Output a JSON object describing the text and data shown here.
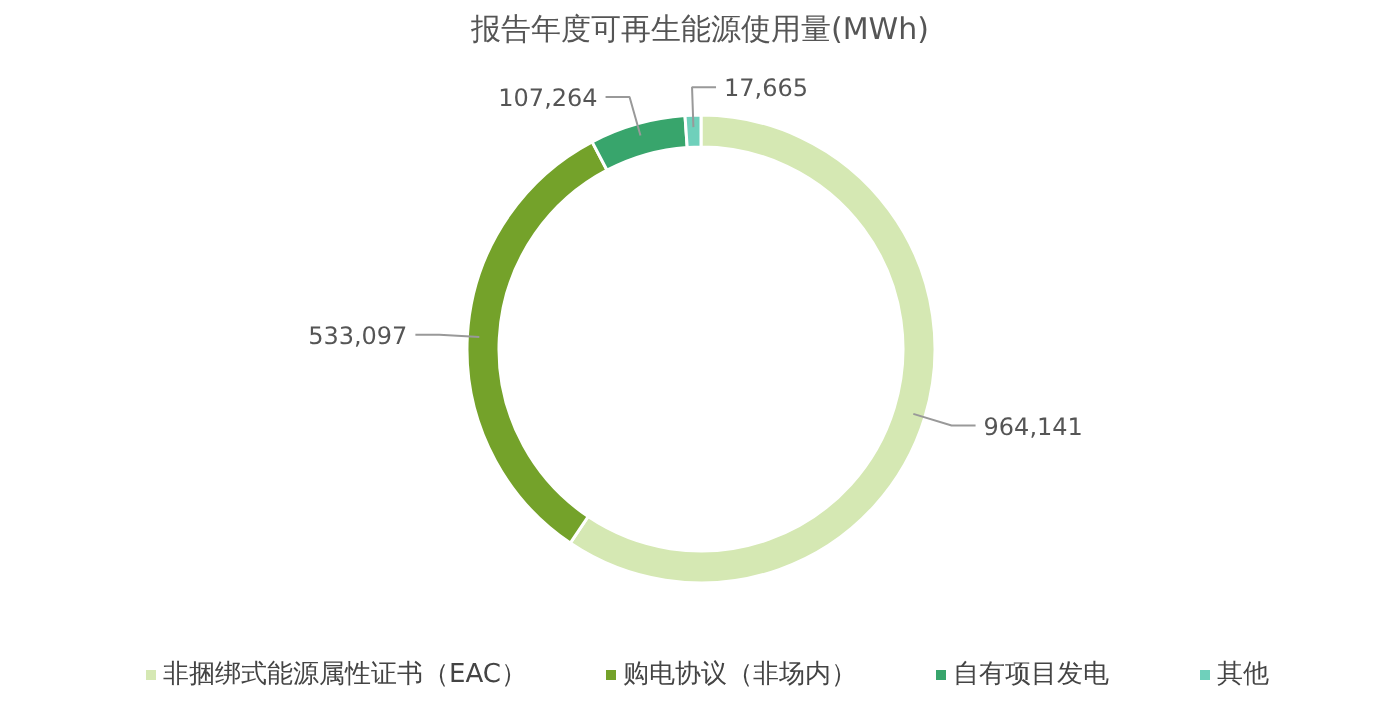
{
  "chart_data": {
    "type": "donut",
    "title": "报告年度可再生能源使用量(MWh)",
    "categories": [
      "非捆绑式能源属性证书（EAC）",
      "购电协议（非场内）",
      "自有项目发电",
      "其他"
    ],
    "values": [
      964141,
      533097,
      107264,
      17665
    ],
    "value_labels": [
      "964,141",
      "533,097",
      "107,264",
      "17,665"
    ],
    "colors": [
      "#d5e8b3",
      "#74a22a",
      "#38a56c",
      "#6fd0bb"
    ],
    "legend": "bottom"
  }
}
